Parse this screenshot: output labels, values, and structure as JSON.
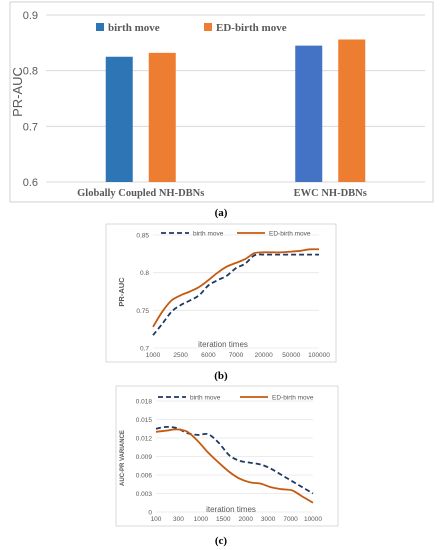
{
  "colors": {
    "blue": "#2E75B6",
    "blue_light": "#4472C4",
    "orange": "#ED7D31",
    "navy": "#1F3864",
    "brown": "#C55A11",
    "grid": "#D9D9D9",
    "axis_text": "#595959"
  },
  "chart_data": [
    {
      "type": "bar",
      "panel_label": "(a)",
      "ylabel": "PR-AUC",
      "ylim": [
        0.6,
        0.9
      ],
      "yticks": [
        "0.6",
        "0.7",
        "0.8",
        "0.9"
      ],
      "categories": [
        "Globally Coupled NH-DBNs",
        "EWC NH-DBNs"
      ],
      "legend_position": "top",
      "series": [
        {
          "name": "birth move",
          "values": [
            0.825,
            0.845
          ]
        },
        {
          "name": "ED-birth move",
          "values": [
            0.832,
            0.856
          ]
        }
      ]
    },
    {
      "type": "line",
      "panel_label": "(b)",
      "ylabel": "PR-AUC",
      "xlabel": "iteration times",
      "ylim": [
        0.7,
        0.85
      ],
      "yticks": [
        "0.7",
        "0.75",
        "0.8",
        "0.85"
      ],
      "xticks": [
        "1000",
        "2500",
        "6000",
        "7000",
        "20000",
        "50000",
        "100000"
      ],
      "legend_position": "top",
      "series": [
        {
          "name": "birth move",
          "style": "dashed",
          "values": [
            0.717,
            0.732,
            0.748,
            0.757,
            0.763,
            0.77,
            0.783,
            0.79,
            0.796,
            0.806,
            0.812,
            0.823,
            0.824,
            0.824,
            0.824,
            0.824,
            0.824,
            0.824,
            0.824
          ]
        },
        {
          "name": "ED-birth move",
          "style": "solid",
          "values": [
            0.728,
            0.748,
            0.763,
            0.77,
            0.775,
            0.781,
            0.79,
            0.8,
            0.808,
            0.813,
            0.818,
            0.826,
            0.827,
            0.827,
            0.827,
            0.828,
            0.829,
            0.831,
            0.831
          ]
        }
      ]
    },
    {
      "type": "line",
      "panel_label": "(c)",
      "ylabel": "AUC-PR VARIANCE",
      "xlabel": "iteration times",
      "ylim": [
        0,
        0.018
      ],
      "yticks": [
        "0",
        "0.003",
        "0.006",
        "0.009",
        "0.012",
        "0.015",
        "0.018"
      ],
      "xticks": [
        "100",
        "300",
        "1000",
        "1500",
        "2000",
        "3000",
        "7000",
        "10000"
      ],
      "legend_position": "top",
      "series": [
        {
          "name": "birth move",
          "style": "dashed",
          "values": [
            0.0135,
            0.0138,
            0.0136,
            0.0128,
            0.0125,
            0.0126,
            0.0112,
            0.0092,
            0.0083,
            0.008,
            0.0077,
            0.007,
            0.006,
            0.005,
            0.004,
            0.003
          ]
        },
        {
          "name": "ED-birth move",
          "style": "solid",
          "values": [
            0.013,
            0.0132,
            0.0134,
            0.013,
            0.0115,
            0.0096,
            0.008,
            0.0065,
            0.0054,
            0.0048,
            0.0046,
            0.004,
            0.0037,
            0.0035,
            0.0025,
            0.0015
          ]
        }
      ]
    }
  ]
}
